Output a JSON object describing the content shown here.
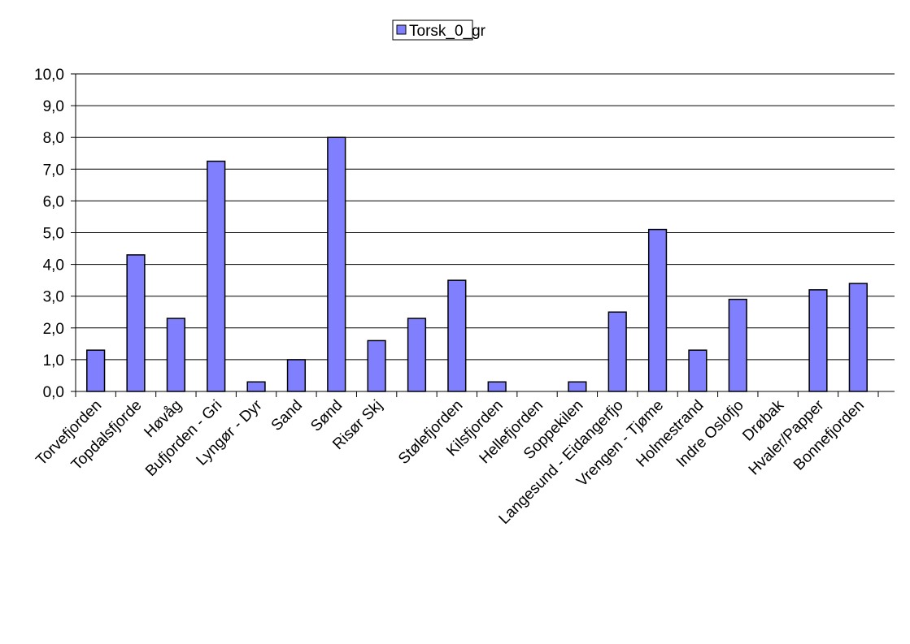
{
  "chart_data": {
    "type": "bar",
    "legend": "Torsk_0_gr",
    "color": "#8080ff",
    "categories": [
      "Torvefjorden",
      "Topdalsfjorde",
      "Høvåg",
      "Bufjorden - Gri",
      "Lyngør - Dyr",
      "Sand",
      "Sønd",
      "Risør Skj",
      null,
      "Stølefjorden",
      "Kilsfjorden",
      "Hellefjorden",
      "Soppekilen",
      "Langesund - Eidangerfjo",
      "Vrengen - Tjøme",
      "Holmestrand",
      "Indre Oslofjo",
      "Drøbak",
      "Hvaler/Papper",
      "Bonnefjorden"
    ],
    "values": [
      1.3,
      4.3,
      2.3,
      7.25,
      0.3,
      1.0,
      8.0,
      1.6,
      2.3,
      3.5,
      0.3,
      null,
      0.3,
      2.5,
      5.1,
      1.3,
      2.9,
      null,
      3.2,
      3.4
    ],
    "ylim": [
      0,
      10
    ],
    "yticks": [
      {
        "value": 0,
        "label": "0,0"
      },
      {
        "value": 1,
        "label": "1,0"
      },
      {
        "value": 2,
        "label": "2,0"
      },
      {
        "value": 3,
        "label": "3,0"
      },
      {
        "value": 4,
        "label": "4,0"
      },
      {
        "value": 5,
        "label": "5,0"
      },
      {
        "value": 6,
        "label": "6,0"
      },
      {
        "value": 7,
        "label": "7,0"
      },
      {
        "value": 8,
        "label": "8,0"
      },
      {
        "value": 9,
        "label": "9,0"
      },
      {
        "value": 10,
        "label": "10,0"
      }
    ],
    "grid": true
  }
}
